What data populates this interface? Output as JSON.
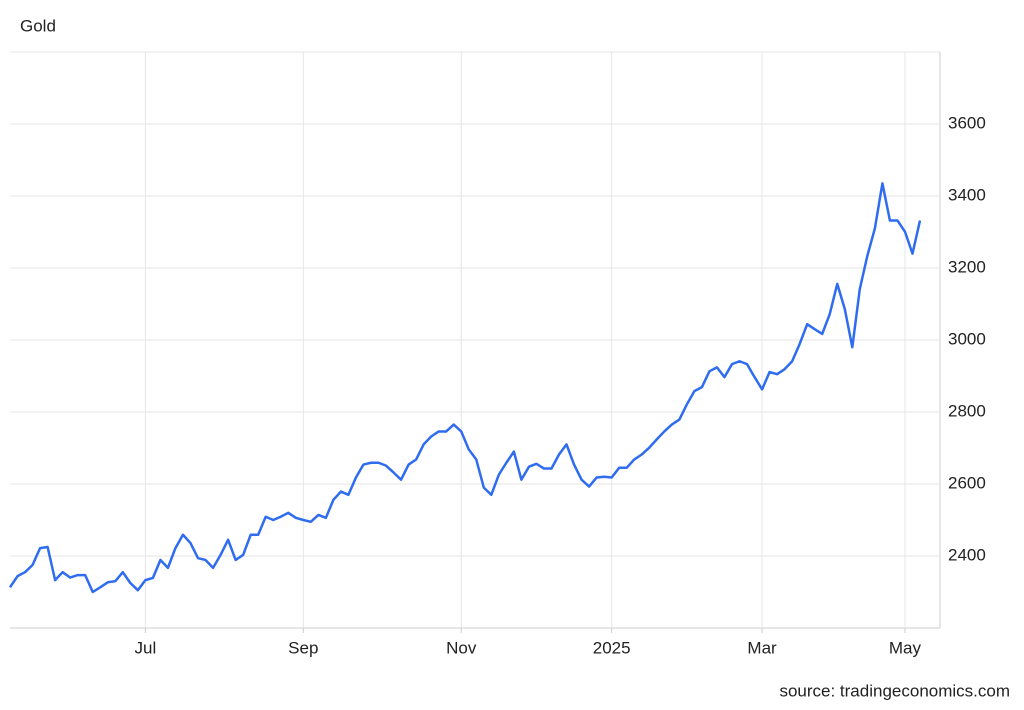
{
  "chart_data": {
    "type": "line",
    "title": "Gold",
    "source": "source: tradingeconomics.com",
    "color": "#2f6cf0",
    "grid": true,
    "categories": [
      null,
      null,
      null,
      null,
      null,
      null,
      null,
      null,
      null,
      null,
      null,
      null,
      null,
      null,
      null,
      null,
      null,
      null,
      "Jul",
      null,
      null,
      null,
      null,
      null,
      null,
      null,
      null,
      null,
      null,
      null,
      null,
      null,
      null,
      null,
      null,
      null,
      null,
      null,
      null,
      "Sep",
      null,
      null,
      null,
      null,
      null,
      null,
      null,
      null,
      null,
      null,
      null,
      null,
      null,
      null,
      null,
      null,
      null,
      null,
      null,
      null,
      "Nov",
      null,
      null,
      null,
      null,
      null,
      null,
      null,
      null,
      null,
      null,
      null,
      null,
      null,
      null,
      null,
      null,
      null,
      null,
      null,
      "2025",
      null,
      null,
      null,
      null,
      null,
      null,
      null,
      null,
      null,
      null,
      null,
      null,
      null,
      null,
      null,
      null,
      null,
      null,
      null,
      "Mar",
      null,
      null,
      null,
      null,
      null,
      null,
      null,
      null,
      null,
      null,
      null,
      null,
      null,
      null,
      null,
      null,
      null,
      null,
      "May",
      null,
      null
    ],
    "values": [
      2313,
      2344,
      2355,
      2375,
      2422,
      2425,
      2333,
      2355,
      2340,
      2347,
      2347,
      2300,
      2313,
      2327,
      2330,
      2355,
      2325,
      2305,
      2333,
      2339,
      2389,
      2367,
      2422,
      2459,
      2436,
      2394,
      2389,
      2367,
      2403,
      2445,
      2389,
      2403,
      2459,
      2459,
      2509,
      2500,
      2509,
      2520,
      2506,
      2500,
      2495,
      2514,
      2506,
      2556,
      2579,
      2570,
      2618,
      2654,
      2659,
      2659,
      2651,
      2632,
      2612,
      2654,
      2668,
      2710,
      2732,
      2746,
      2746,
      2765,
      2746,
      2696,
      2668,
      2590,
      2570,
      2626,
      2659,
      2690,
      2612,
      2648,
      2656,
      2643,
      2643,
      2682,
      2710,
      2654,
      2612,
      2593,
      2618,
      2620,
      2618,
      2645,
      2645,
      2668,
      2682,
      2701,
      2724,
      2746,
      2765,
      2779,
      2821,
      2858,
      2869,
      2913,
      2924,
      2897,
      2933,
      2941,
      2933,
      2897,
      2863,
      2911,
      2905,
      2919,
      2941,
      2989,
      3044,
      3030,
      3017,
      3072,
      3156,
      3086,
      2980,
      3142,
      3234,
      3310,
      3435,
      3332,
      3332,
      3301,
      3240,
      3332
    ],
    "ylim": [
      2200,
      3800
    ],
    "yticks": [
      2400,
      2600,
      2800,
      3000,
      3200,
      3400,
      3600
    ]
  }
}
